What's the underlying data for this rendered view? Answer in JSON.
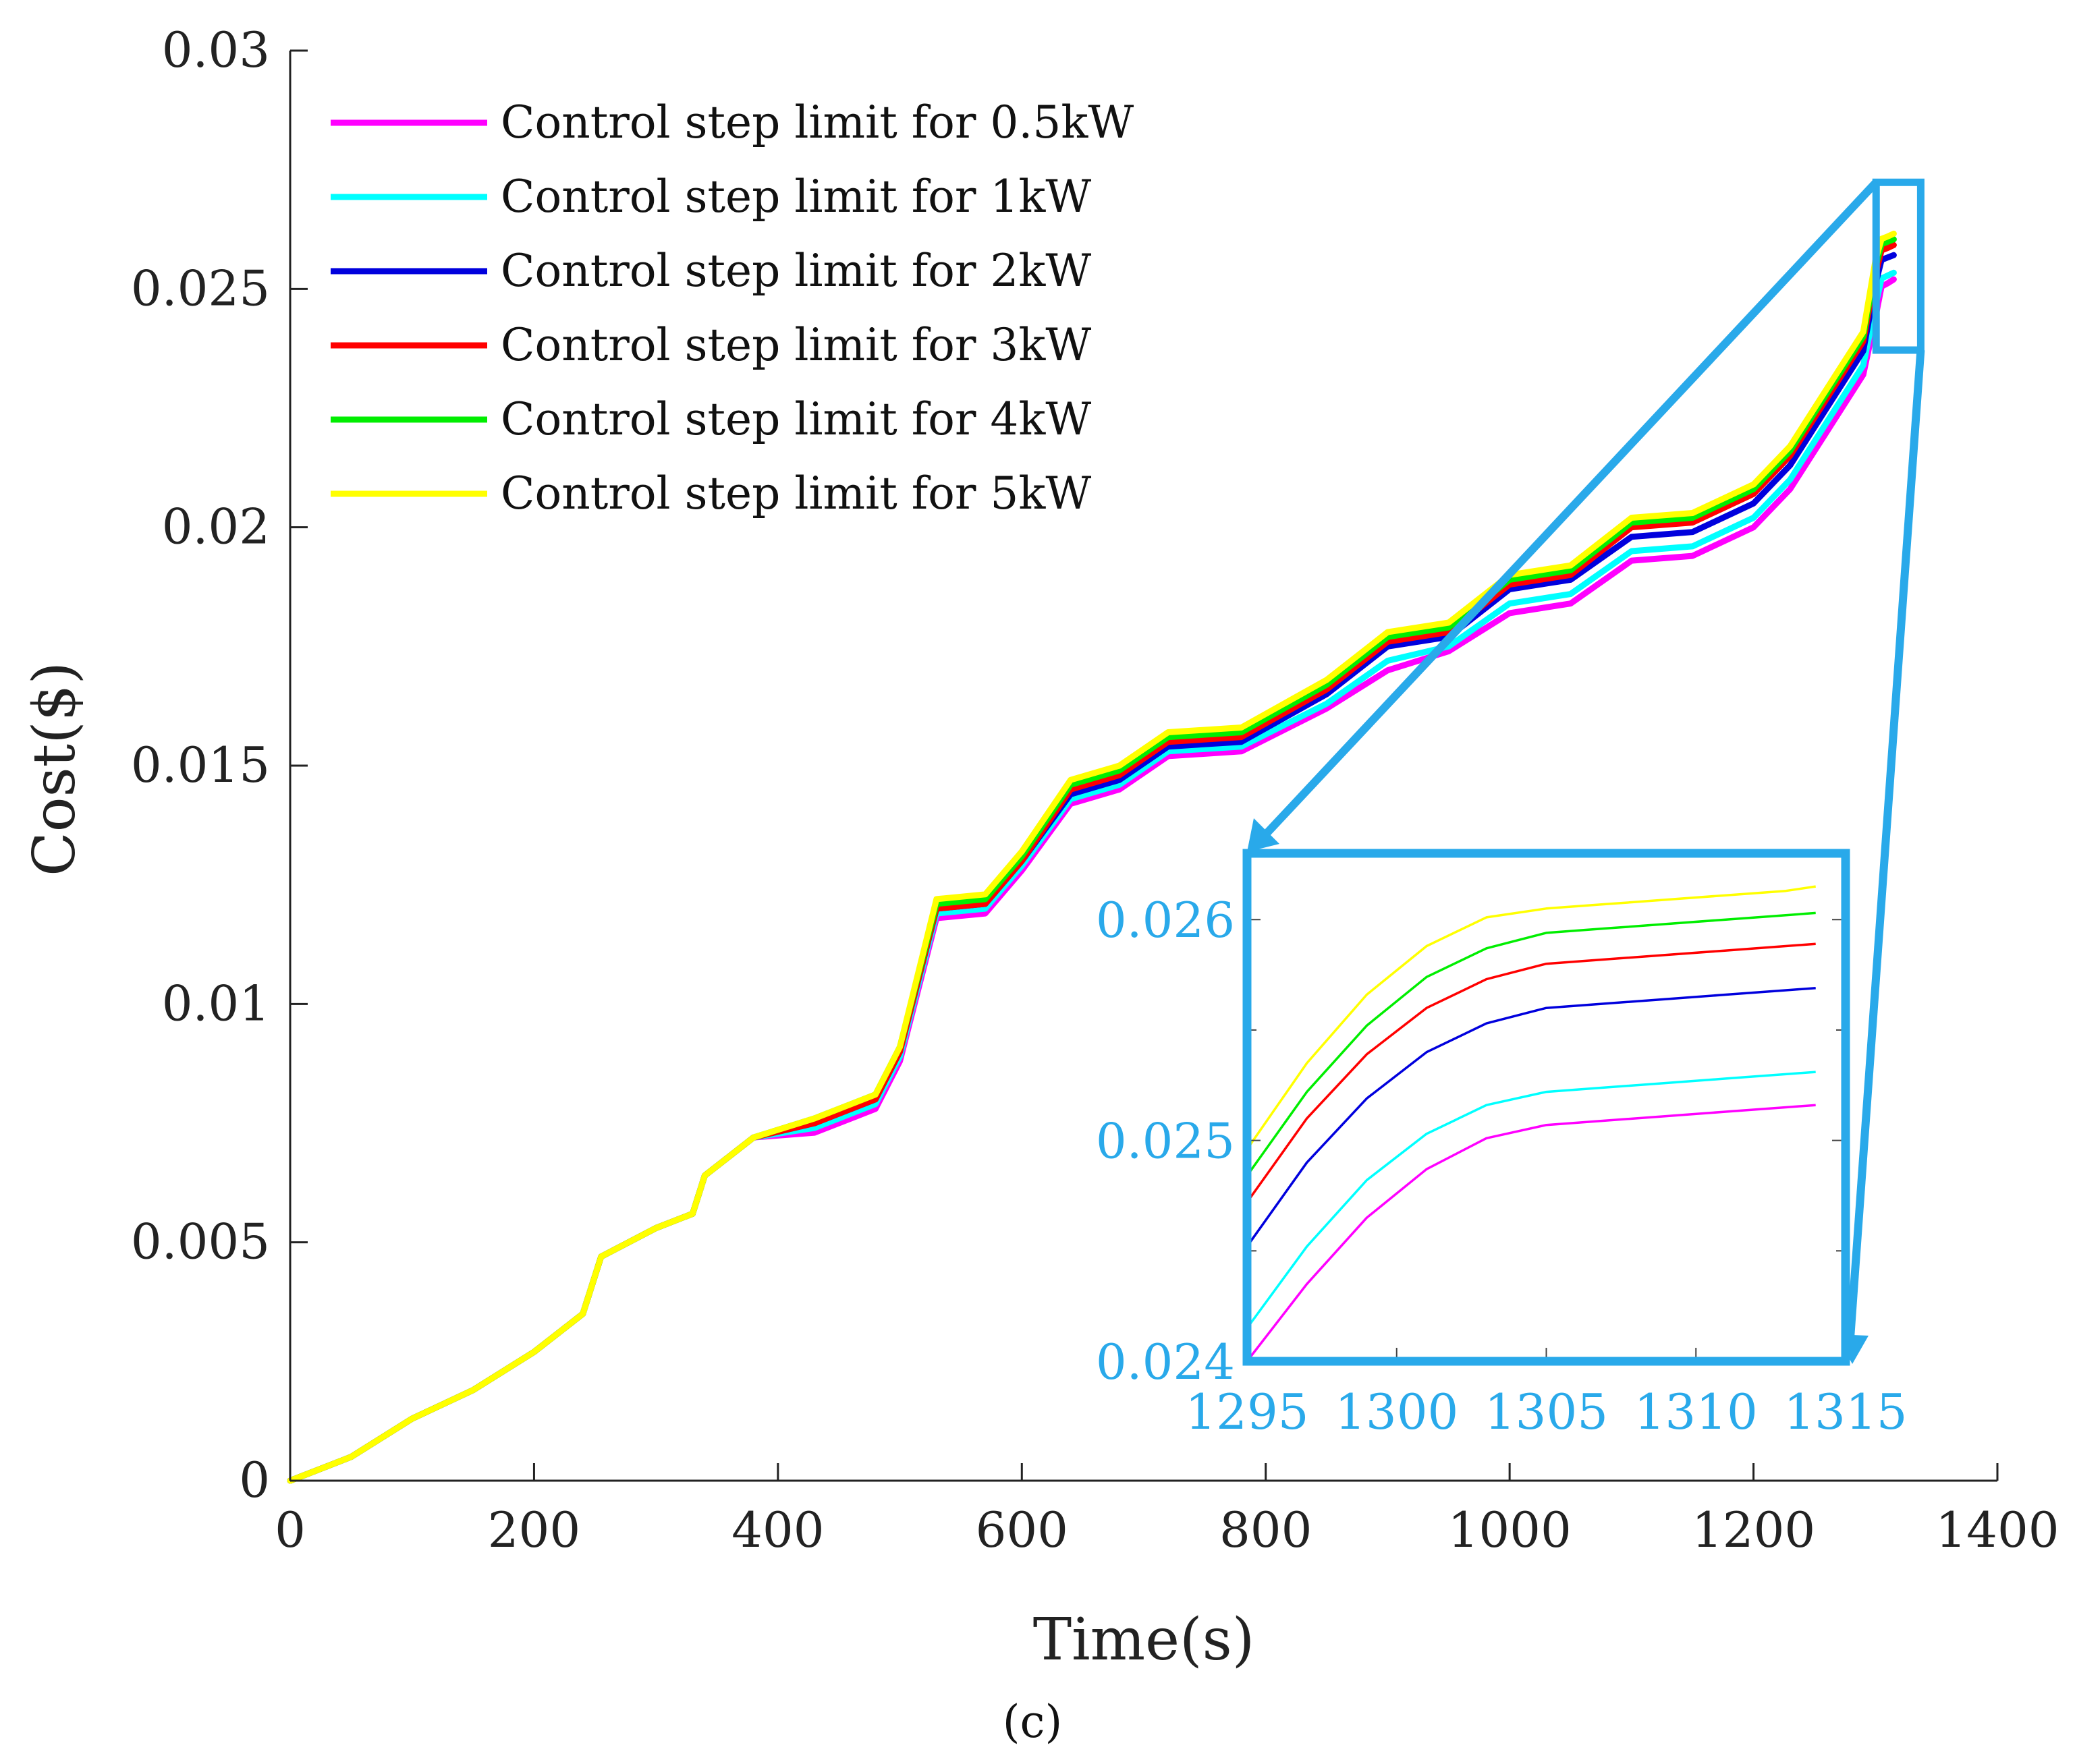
{
  "chart_data": {
    "type": "line",
    "title": "",
    "xlabel": "Time(s)",
    "ylabel": "Cost($)",
    "caption": "(c)",
    "xlim": [
      0,
      1400
    ],
    "ylim": [
      0,
      0.03
    ],
    "xticks": [
      "0",
      "200",
      "400",
      "600",
      "800",
      "1000",
      "1200",
      "1400"
    ],
    "yticks": [
      "0",
      "0.005",
      "0.01",
      "0.015",
      "0.02",
      "0.025",
      "0.03"
    ],
    "legend_position": "top-left",
    "series": [
      {
        "name": "Control step limit for 0.5kW",
        "color": "#ff00ff",
        "x": [
          0,
          50,
          100,
          150,
          200,
          240,
          255,
          300,
          330,
          340,
          380,
          430,
          480,
          500,
          530,
          570,
          600,
          640,
          680,
          720,
          780,
          850,
          900,
          950,
          1000,
          1050,
          1100,
          1150,
          1200,
          1230,
          1260,
          1290,
          1300,
          1305,
          1310,
          1315
        ],
        "y": [
          0,
          0.0005,
          0.0013,
          0.0019,
          0.0027,
          0.0035,
          0.0047,
          0.0053,
          0.0056,
          0.0064,
          0.0072,
          0.0073,
          0.0078,
          0.0088,
          0.0118,
          0.0119,
          0.0128,
          0.0142,
          0.0145,
          0.0152,
          0.0153,
          0.0162,
          0.017,
          0.0174,
          0.0182,
          0.0184,
          0.0193,
          0.0194,
          0.02,
          0.0208,
          0.022,
          0.0232,
          0.0244,
          0.02505,
          0.02512,
          0.0252
        ]
      },
      {
        "name": "Control step limit for 1kW",
        "color": "#00ffff",
        "x": [
          0,
          50,
          100,
          150,
          200,
          240,
          255,
          300,
          330,
          340,
          380,
          430,
          480,
          500,
          530,
          570,
          600,
          640,
          680,
          720,
          780,
          850,
          900,
          950,
          1000,
          1050,
          1100,
          1150,
          1200,
          1230,
          1260,
          1290,
          1300,
          1305,
          1310,
          1315
        ],
        "y": [
          0,
          0.0005,
          0.0013,
          0.0019,
          0.0027,
          0.0035,
          0.0047,
          0.0053,
          0.0056,
          0.0064,
          0.0072,
          0.0074,
          0.0079,
          0.0089,
          0.0119,
          0.012,
          0.0129,
          0.0143,
          0.0146,
          0.0153,
          0.0154,
          0.0163,
          0.0172,
          0.0175,
          0.0184,
          0.0186,
          0.0195,
          0.0196,
          0.0202,
          0.021,
          0.0222,
          0.0234,
          0.02465,
          0.02522,
          0.02528,
          0.02534
        ]
      },
      {
        "name": "Control step limit for 2kW",
        "color": "#0000dd",
        "x": [
          0,
          50,
          100,
          150,
          200,
          240,
          255,
          300,
          330,
          340,
          380,
          430,
          480,
          500,
          530,
          570,
          600,
          640,
          680,
          720,
          780,
          850,
          900,
          950,
          1000,
          1050,
          1100,
          1150,
          1200,
          1230,
          1260,
          1290,
          1300,
          1305,
          1310,
          1315
        ],
        "y": [
          0,
          0.0005,
          0.0013,
          0.0019,
          0.0027,
          0.0035,
          0.0047,
          0.0053,
          0.0056,
          0.0064,
          0.0072,
          0.0075,
          0.008,
          0.009,
          0.012,
          0.0121,
          0.013,
          0.0144,
          0.0147,
          0.0154,
          0.0155,
          0.0165,
          0.0175,
          0.0177,
          0.0187,
          0.0189,
          0.0198,
          0.0199,
          0.0205,
          0.0213,
          0.0225,
          0.0237,
          0.0251,
          0.02561,
          0.02566,
          0.02571
        ]
      },
      {
        "name": "Control step limit for 3kW",
        "color": "#ff0000",
        "x": [
          0,
          50,
          100,
          150,
          200,
          240,
          255,
          300,
          330,
          340,
          380,
          430,
          480,
          500,
          530,
          570,
          600,
          640,
          680,
          720,
          780,
          850,
          900,
          950,
          1000,
          1050,
          1100,
          1150,
          1200,
          1230,
          1260,
          1290,
          1300,
          1305,
          1310,
          1315
        ],
        "y": [
          0,
          0.0005,
          0.0013,
          0.0019,
          0.0027,
          0.0035,
          0.0047,
          0.0053,
          0.0056,
          0.0064,
          0.0072,
          0.0075,
          0.008,
          0.009,
          0.012,
          0.0121,
          0.013,
          0.0145,
          0.0148,
          0.0155,
          0.0156,
          0.0166,
          0.0176,
          0.0178,
          0.0188,
          0.019,
          0.02,
          0.0201,
          0.0207,
          0.0215,
          0.0227,
          0.0239,
          0.0253,
          0.02581,
          0.02586,
          0.02592
        ]
      },
      {
        "name": "Control step limit for 4kW",
        "color": "#00ee00",
        "x": [
          0,
          50,
          100,
          150,
          200,
          240,
          255,
          300,
          330,
          340,
          380,
          430,
          480,
          500,
          530,
          570,
          600,
          640,
          680,
          720,
          780,
          850,
          900,
          950,
          1000,
          1050,
          1100,
          1150,
          1200,
          1230,
          1260,
          1290,
          1300,
          1305,
          1310,
          1315
        ],
        "y": [
          0,
          0.0005,
          0.0013,
          0.0019,
          0.0027,
          0.0035,
          0.0047,
          0.0053,
          0.0056,
          0.0064,
          0.0072,
          0.0076,
          0.0081,
          0.0091,
          0.0121,
          0.0122,
          0.0131,
          0.0146,
          0.0149,
          0.0156,
          0.0157,
          0.0167,
          0.0177,
          0.0179,
          0.0189,
          0.0191,
          0.0201,
          0.0202,
          0.0208,
          0.0216,
          0.0228,
          0.024,
          0.02545,
          0.02594,
          0.02599,
          0.02604
        ]
      },
      {
        "name": "Control step limit for 5kW",
        "color": "#ffff00",
        "x": [
          0,
          50,
          100,
          150,
          200,
          240,
          255,
          300,
          330,
          340,
          380,
          430,
          480,
          500,
          530,
          570,
          600,
          640,
          680,
          720,
          780,
          850,
          900,
          950,
          1000,
          1050,
          1100,
          1150,
          1200,
          1230,
          1260,
          1290,
          1300,
          1305,
          1310,
          1315
        ],
        "y": [
          0,
          0.0005,
          0.0013,
          0.0019,
          0.0027,
          0.0035,
          0.0047,
          0.0053,
          0.0056,
          0.0064,
          0.0072,
          0.0076,
          0.0081,
          0.0091,
          0.0122,
          0.0123,
          0.0132,
          0.0147,
          0.015,
          0.0157,
          0.0158,
          0.0168,
          0.0178,
          0.018,
          0.019,
          0.0192,
          0.0202,
          0.0203,
          0.0209,
          0.0217,
          0.0229,
          0.0241,
          0.0256,
          0.02605,
          0.0261,
          0.02616
        ]
      }
    ],
    "inset": {
      "xlim": [
        1295,
        1315
      ],
      "ylim": [
        0.024,
        0.0263
      ],
      "xticks": [
        "1295",
        "1300",
        "1305",
        "1310",
        "1315"
      ],
      "yticks": [
        "0.024",
        "0.025",
        "0.026"
      ],
      "color": "#29a9ea",
      "series_x": [
        1295,
        1297,
        1299,
        1301,
        1303,
        1305,
        1307,
        1309,
        1311,
        1313,
        1314
      ],
      "series_y": {
        "Control step limit for 0.5kW": [
          0.024,
          0.02435,
          0.02465,
          0.02487,
          0.02501,
          0.02507,
          0.02509,
          0.02511,
          0.02513,
          0.02515,
          0.02516
        ],
        "Control step limit for 1kW": [
          0.02415,
          0.02452,
          0.02482,
          0.02503,
          0.02516,
          0.02522,
          0.02524,
          0.02526,
          0.02528,
          0.0253,
          0.02531
        ],
        "Control step limit for 2kW": [
          0.02452,
          0.0249,
          0.02519,
          0.0254,
          0.02553,
          0.0256,
          0.02562,
          0.02564,
          0.02566,
          0.02568,
          0.02569
        ],
        "Control step limit for 3kW": [
          0.02472,
          0.0251,
          0.02539,
          0.0256,
          0.02573,
          0.0258,
          0.02582,
          0.02584,
          0.02586,
          0.02588,
          0.02589
        ],
        "Control step limit for 4kW": [
          0.02484,
          0.02522,
          0.02552,
          0.02574,
          0.02587,
          0.02594,
          0.02596,
          0.02598,
          0.026,
          0.02602,
          0.02603
        ],
        "Control step limit for 5kW": [
          0.02496,
          0.02535,
          0.02566,
          0.02588,
          0.02601,
          0.02605,
          0.02607,
          0.02609,
          0.02611,
          0.02613,
          0.02615
        ]
      }
    }
  }
}
